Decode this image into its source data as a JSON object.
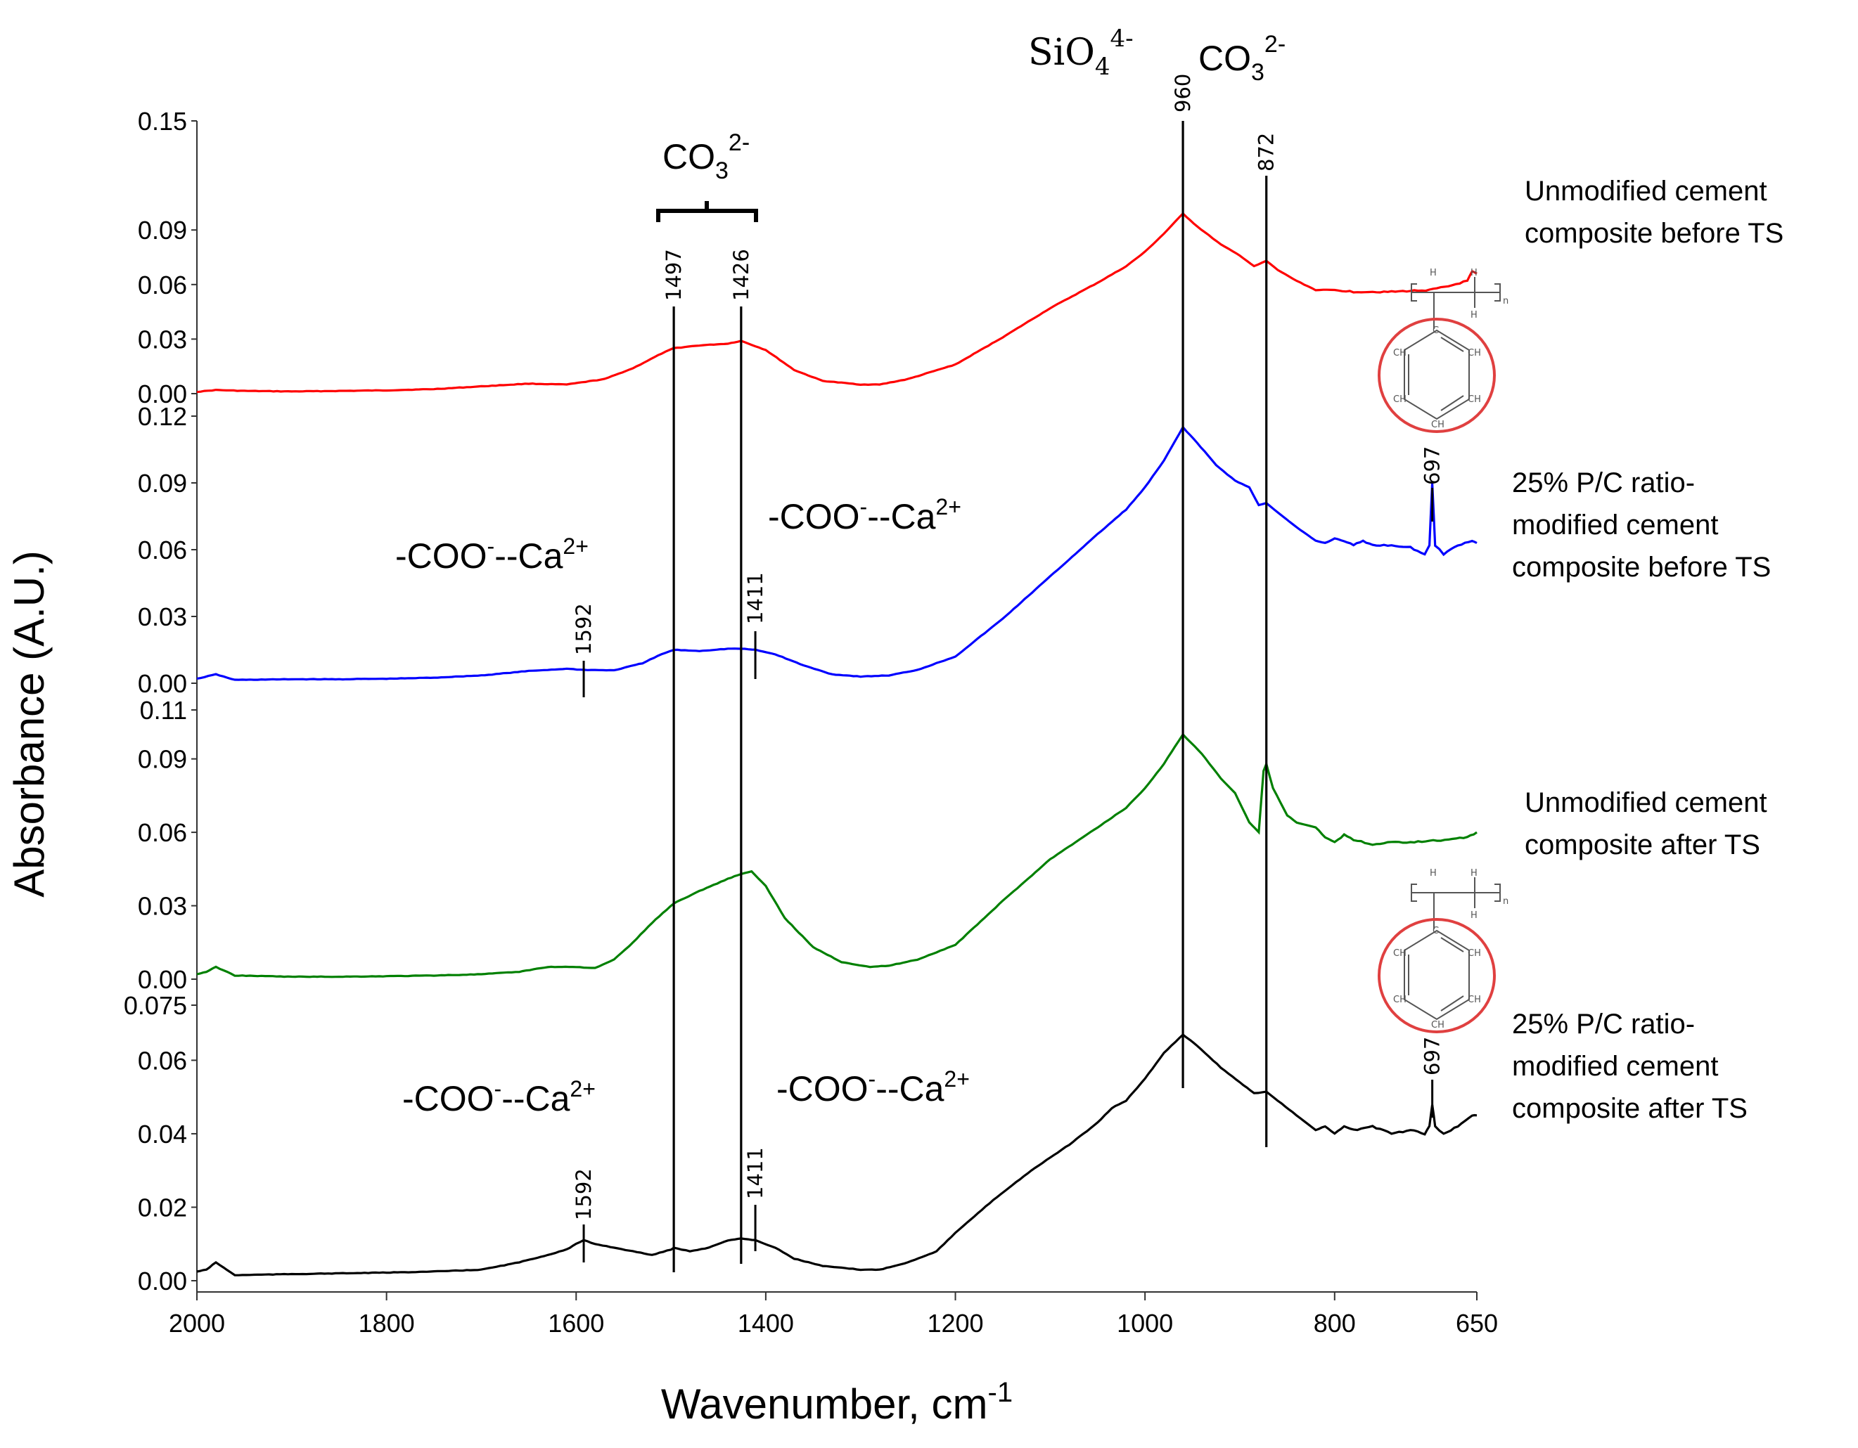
{
  "chart_data": {
    "type": "line",
    "title": "",
    "xlabel": "Wavenumber, cm",
    "xlabel_sup": "-1",
    "ylabel": "Absorbance (A.U.)",
    "x_range": [
      2000,
      650
    ],
    "x_reversed": true,
    "x_ticks": [
      "2000",
      "1800",
      "1600",
      "1400",
      "1200",
      "1000",
      "800",
      "650"
    ],
    "panels": [
      {
        "name": "Unmodified cement composite before TS",
        "label_lines": [
          "Unmodified cement",
          "composite before TS"
        ],
        "color": "#ff0000",
        "ylim": [
          0.0,
          0.15
        ],
        "y_ticks": [
          "0.15",
          "0.09",
          "0.06",
          "0.03",
          "0.00"
        ],
        "points": [
          [
            2000,
            0.001
          ],
          [
            1980,
            0.002
          ],
          [
            1950,
            0.0015
          ],
          [
            1900,
            0.0012
          ],
          [
            1850,
            0.0015
          ],
          [
            1800,
            0.0018
          ],
          [
            1750,
            0.0025
          ],
          [
            1700,
            0.004
          ],
          [
            1650,
            0.0055
          ],
          [
            1610,
            0.005
          ],
          [
            1570,
            0.008
          ],
          [
            1540,
            0.014
          ],
          [
            1510,
            0.022
          ],
          [
            1497,
            0.025
          ],
          [
            1470,
            0.0265
          ],
          [
            1440,
            0.0275
          ],
          [
            1426,
            0.029
          ],
          [
            1400,
            0.024
          ],
          [
            1370,
            0.013
          ],
          [
            1340,
            0.007
          ],
          [
            1300,
            0.005
          ],
          [
            1280,
            0.005
          ],
          [
            1250,
            0.008
          ],
          [
            1200,
            0.016
          ],
          [
            1150,
            0.031
          ],
          [
            1100,
            0.047
          ],
          [
            1050,
            0.061
          ],
          [
            1020,
            0.07
          ],
          [
            1000,
            0.078
          ],
          [
            980,
            0.088
          ],
          [
            960,
            0.099
          ],
          [
            945,
            0.092
          ],
          [
            920,
            0.082
          ],
          [
            900,
            0.076
          ],
          [
            885,
            0.07
          ],
          [
            872,
            0.073
          ],
          [
            860,
            0.068
          ],
          [
            840,
            0.062
          ],
          [
            820,
            0.057
          ],
          [
            800,
            0.057
          ],
          [
            780,
            0.056
          ],
          [
            760,
            0.056
          ],
          [
            740,
            0.056
          ],
          [
            720,
            0.0565
          ],
          [
            700,
            0.057
          ],
          [
            680,
            0.059
          ],
          [
            660,
            0.062
          ],
          [
            655,
            0.067
          ],
          [
            650,
            0.066
          ]
        ]
      },
      {
        "name": "25% P/C ratio-modified cement composite before TS",
        "label_lines": [
          "25% P/C ratio-",
          "modified cement",
          "composite before TS"
        ],
        "color": "#0000ff",
        "ylim": [
          0.0,
          0.12
        ],
        "y_ticks": [
          "0.12",
          "0.09",
          "0.06",
          "0.03",
          "0.00"
        ],
        "points": [
          [
            2000,
            0.002
          ],
          [
            1980,
            0.004
          ],
          [
            1960,
            0.0015
          ],
          [
            1900,
            0.0018
          ],
          [
            1850,
            0.0018
          ],
          [
            1800,
            0.002
          ],
          [
            1750,
            0.0025
          ],
          [
            1700,
            0.0035
          ],
          [
            1650,
            0.0055
          ],
          [
            1610,
            0.0065
          ],
          [
            1592,
            0.006
          ],
          [
            1560,
            0.0058
          ],
          [
            1530,
            0.009
          ],
          [
            1510,
            0.013
          ],
          [
            1497,
            0.015
          ],
          [
            1470,
            0.0145
          ],
          [
            1440,
            0.0155
          ],
          [
            1426,
            0.0155
          ],
          [
            1411,
            0.015
          ],
          [
            1390,
            0.013
          ],
          [
            1360,
            0.008
          ],
          [
            1330,
            0.004
          ],
          [
            1300,
            0.003
          ],
          [
            1270,
            0.0035
          ],
          [
            1240,
            0.006
          ],
          [
            1200,
            0.012
          ],
          [
            1150,
            0.029
          ],
          [
            1100,
            0.048
          ],
          [
            1050,
            0.067
          ],
          [
            1020,
            0.078
          ],
          [
            1000,
            0.088
          ],
          [
            980,
            0.1
          ],
          [
            960,
            0.115
          ],
          [
            945,
            0.108
          ],
          [
            925,
            0.098
          ],
          [
            905,
            0.091
          ],
          [
            890,
            0.088
          ],
          [
            880,
            0.08
          ],
          [
            872,
            0.081
          ],
          [
            855,
            0.075
          ],
          [
            840,
            0.07
          ],
          [
            820,
            0.064
          ],
          [
            810,
            0.063
          ],
          [
            800,
            0.065
          ],
          [
            790,
            0.064
          ],
          [
            780,
            0.062
          ],
          [
            770,
            0.064
          ],
          [
            760,
            0.062
          ],
          [
            740,
            0.062
          ],
          [
            720,
            0.061
          ],
          [
            705,
            0.058
          ],
          [
            700,
            0.062
          ],
          [
            697,
            0.09
          ],
          [
            694,
            0.062
          ],
          [
            685,
            0.058
          ],
          [
            670,
            0.062
          ],
          [
            655,
            0.064
          ],
          [
            650,
            0.063
          ]
        ]
      },
      {
        "name": "Unmodified cement composite after TS",
        "label_lines": [
          "Unmodified cement",
          "composite after TS"
        ],
        "color": "#008000",
        "ylim": [
          0.0,
          0.11
        ],
        "y_ticks": [
          "0.11",
          "0.09",
          "0.06",
          "0.03",
          "0.00"
        ],
        "points": [
          [
            2000,
            0.002
          ],
          [
            1990,
            0.003
          ],
          [
            1980,
            0.005
          ],
          [
            1960,
            0.0015
          ],
          [
            1900,
            0.001
          ],
          [
            1850,
            0.001
          ],
          [
            1800,
            0.0012
          ],
          [
            1750,
            0.0015
          ],
          [
            1700,
            0.002
          ],
          [
            1660,
            0.003
          ],
          [
            1630,
            0.005
          ],
          [
            1600,
            0.005
          ],
          [
            1580,
            0.0045
          ],
          [
            1560,
            0.008
          ],
          [
            1540,
            0.015
          ],
          [
            1520,
            0.023
          ],
          [
            1497,
            0.031
          ],
          [
            1470,
            0.036
          ],
          [
            1440,
            0.041
          ],
          [
            1426,
            0.043
          ],
          [
            1415,
            0.044
          ],
          [
            1400,
            0.038
          ],
          [
            1380,
            0.025
          ],
          [
            1350,
            0.013
          ],
          [
            1320,
            0.007
          ],
          [
            1290,
            0.005
          ],
          [
            1270,
            0.0055
          ],
          [
            1240,
            0.008
          ],
          [
            1200,
            0.014
          ],
          [
            1150,
            0.032
          ],
          [
            1100,
            0.049
          ],
          [
            1050,
            0.062
          ],
          [
            1020,
            0.07
          ],
          [
            1000,
            0.078
          ],
          [
            980,
            0.088
          ],
          [
            960,
            0.1
          ],
          [
            940,
            0.092
          ],
          [
            920,
            0.082
          ],
          [
            905,
            0.076
          ],
          [
            890,
            0.064
          ],
          [
            880,
            0.06
          ],
          [
            875,
            0.085
          ],
          [
            872,
            0.088
          ],
          [
            865,
            0.078
          ],
          [
            850,
            0.067
          ],
          [
            840,
            0.064
          ],
          [
            820,
            0.062
          ],
          [
            810,
            0.058
          ],
          [
            800,
            0.056
          ],
          [
            790,
            0.059
          ],
          [
            780,
            0.057
          ],
          [
            760,
            0.055
          ],
          [
            740,
            0.056
          ],
          [
            720,
            0.056
          ],
          [
            700,
            0.0565
          ],
          [
            680,
            0.057
          ],
          [
            660,
            0.058
          ],
          [
            650,
            0.06
          ]
        ]
      },
      {
        "name": "25% P/C ratio-modified cement composite after TS",
        "label_lines": [
          "25% P/C ratio-",
          "modified cement",
          "composite after TS"
        ],
        "color": "#000000",
        "ylim": [
          0.0,
          0.075
        ],
        "y_ticks": [
          "0.075",
          "0.06",
          "0.04",
          "0.02",
          "0.00"
        ],
        "points": [
          [
            2000,
            0.0025
          ],
          [
            1990,
            0.003
          ],
          [
            1980,
            0.005
          ],
          [
            1960,
            0.0015
          ],
          [
            1900,
            0.0018
          ],
          [
            1850,
            0.002
          ],
          [
            1800,
            0.0022
          ],
          [
            1750,
            0.0025
          ],
          [
            1700,
            0.003
          ],
          [
            1660,
            0.005
          ],
          [
            1630,
            0.007
          ],
          [
            1610,
            0.0085
          ],
          [
            1600,
            0.01
          ],
          [
            1592,
            0.011
          ],
          [
            1580,
            0.01
          ],
          [
            1560,
            0.009
          ],
          [
            1540,
            0.008
          ],
          [
            1520,
            0.007
          ],
          [
            1500,
            0.0085
          ],
          [
            1497,
            0.009
          ],
          [
            1480,
            0.008
          ],
          [
            1460,
            0.009
          ],
          [
            1440,
            0.011
          ],
          [
            1426,
            0.0115
          ],
          [
            1411,
            0.011
          ],
          [
            1390,
            0.009
          ],
          [
            1370,
            0.006
          ],
          [
            1340,
            0.004
          ],
          [
            1300,
            0.003
          ],
          [
            1280,
            0.003
          ],
          [
            1250,
            0.005
          ],
          [
            1220,
            0.008
          ],
          [
            1200,
            0.013
          ],
          [
            1160,
            0.022
          ],
          [
            1120,
            0.03
          ],
          [
            1080,
            0.037
          ],
          [
            1050,
            0.043
          ],
          [
            1035,
            0.047
          ],
          [
            1020,
            0.049
          ],
          [
            1000,
            0.055
          ],
          [
            980,
            0.062
          ],
          [
            960,
            0.067
          ],
          [
            945,
            0.064
          ],
          [
            920,
            0.058
          ],
          [
            900,
            0.054
          ],
          [
            885,
            0.051
          ],
          [
            872,
            0.0515
          ],
          [
            860,
            0.049
          ],
          [
            840,
            0.045
          ],
          [
            820,
            0.041
          ],
          [
            810,
            0.042
          ],
          [
            800,
            0.04
          ],
          [
            790,
            0.042
          ],
          [
            780,
            0.041
          ],
          [
            760,
            0.042
          ],
          [
            740,
            0.04
          ],
          [
            720,
            0.041
          ],
          [
            705,
            0.04
          ],
          [
            700,
            0.042
          ],
          [
            697,
            0.048
          ],
          [
            694,
            0.042
          ],
          [
            685,
            0.04
          ],
          [
            670,
            0.042
          ],
          [
            655,
            0.045
          ],
          [
            650,
            0.045
          ]
        ]
      }
    ],
    "peak_markers": [
      {
        "wavenumber": 960,
        "label": "960"
      },
      {
        "wavenumber": 872,
        "label": "872"
      },
      {
        "wavenumber": 1497,
        "label": "1497"
      },
      {
        "wavenumber": 1426,
        "label": "1426"
      },
      {
        "wavenumber": 1592,
        "label": "1592"
      },
      {
        "wavenumber": 1411,
        "label": "1411"
      },
      {
        "wavenumber": 697,
        "label": "697"
      }
    ],
    "annotations": {
      "sio4": {
        "base": "SiO",
        "sub": "4",
        "sup": "4-"
      },
      "co3_top": {
        "base": "CO",
        "sub": "3",
        "sup": "2-"
      },
      "co3_bracket": {
        "base": "CO",
        "sub": "3",
        "sup": "2-"
      },
      "coo": {
        "base": "-COO",
        "sup1": "-",
        "mid": "--Ca",
        "sup2": "2+"
      },
      "structure_atoms": {
        "h": "H",
        "c": "C",
        "ch": "CH",
        "n": "n"
      }
    }
  }
}
